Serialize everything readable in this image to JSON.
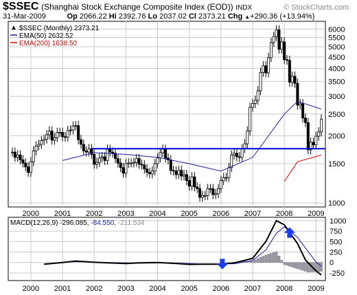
{
  "header": {
    "symbol": "$SSEC",
    "full_name": "(Shanghai Stock Exchange Composite Index (EOD))",
    "suffix": "INDX",
    "watermark": "© StockCharts.com",
    "date": "31-Mar-2009",
    "open_label": "Op",
    "open": "2066.22",
    "high_label": "Hi",
    "high": "2392.76",
    "low_label": "Lo",
    "low": "2037.02",
    "close_label": "Cl",
    "close": "2373.21",
    "change_label": "Chg",
    "change": "+290.36 (+13.94%)",
    "change_arrow": "▲"
  },
  "legend": {
    "price": "$SSEC (Monthly) 2373.21",
    "ema50": "EMA(50) 2632.52",
    "ema200": "EMA(200) 1638.50"
  },
  "macd_legend": {
    "label": "MACD(12,26,9)",
    "macd": "-296.085,",
    "signal": "-84.550,",
    "hist": "-211.534"
  },
  "colors": {
    "price": "#000000",
    "ema50": "#1a1aa8",
    "ema200": "#dd0000",
    "support": "#0000dd",
    "hist": "#9a9aa8",
    "arrow": "#1a3cf0",
    "grid": "#c8c8c8"
  },
  "chart_data": [
    {
      "type": "line",
      "title": "$SSEC (Monthly)",
      "y_scale": "log",
      "y_ticks": [
        1000,
        1500,
        2000,
        2500,
        3000,
        3500,
        4000,
        4500,
        5000,
        5500,
        6000
      ],
      "x_ticks": [
        "2000",
        "2001",
        "2002",
        "2003",
        "2004",
        "2005",
        "2006",
        "2007",
        "2008",
        "2009"
      ],
      "x_range": [
        "1999-06",
        "2009-03"
      ],
      "grid": true,
      "legend_position": "top-left",
      "series": [
        {
          "name": "$SSEC",
          "x": [
            "1999-06",
            "1999-07",
            "1999-08",
            "1999-09",
            "1999-10",
            "1999-11",
            "1999-12",
            "2000-01",
            "2000-02",
            "2000-03",
            "2000-04",
            "2000-05",
            "2000-06",
            "2000-07",
            "2000-08",
            "2000-09",
            "2000-10",
            "2000-11",
            "2000-12",
            "2001-01",
            "2001-02",
            "2001-03",
            "2001-04",
            "2001-05",
            "2001-06",
            "2001-07",
            "2001-08",
            "2001-09",
            "2001-10",
            "2001-11",
            "2001-12",
            "2002-01",
            "2002-02",
            "2002-03",
            "2002-04",
            "2002-05",
            "2002-06",
            "2002-07",
            "2002-08",
            "2002-09",
            "2002-10",
            "2002-11",
            "2002-12",
            "2003-01",
            "2003-02",
            "2003-03",
            "2003-04",
            "2003-05",
            "2003-06",
            "2003-07",
            "2003-08",
            "2003-09",
            "2003-10",
            "2003-11",
            "2003-12",
            "2004-01",
            "2004-02",
            "2004-03",
            "2004-04",
            "2004-05",
            "2004-06",
            "2004-07",
            "2004-08",
            "2004-09",
            "2004-10",
            "2004-11",
            "2004-12",
            "2005-01",
            "2005-02",
            "2005-03",
            "2005-04",
            "2005-05",
            "2005-06",
            "2005-07",
            "2005-08",
            "2005-09",
            "2005-10",
            "2005-11",
            "2005-12",
            "2006-01",
            "2006-02",
            "2006-03",
            "2006-04",
            "2006-05",
            "2006-06",
            "2006-07",
            "2006-08",
            "2006-09",
            "2006-10",
            "2006-11",
            "2006-12",
            "2007-01",
            "2007-02",
            "2007-03",
            "2007-04",
            "2007-05",
            "2007-06",
            "2007-07",
            "2007-08",
            "2007-09",
            "2007-10",
            "2007-11",
            "2007-12",
            "2008-01",
            "2008-02",
            "2008-03",
            "2008-04",
            "2008-05",
            "2008-06",
            "2008-07",
            "2008-08",
            "2008-09",
            "2008-10",
            "2008-11",
            "2008-12",
            "2009-01",
            "2009-02",
            "2009-03"
          ],
          "values": [
            1690,
            1600,
            1640,
            1560,
            1510,
            1450,
            1370,
            1530,
            1710,
            1800,
            1830,
            1900,
            1930,
            2020,
            2100,
            1910,
            1960,
            2070,
            2070,
            1980,
            1970,
            2110,
            2120,
            2210,
            2220,
            1920,
            1830,
            1710,
            1690,
            1750,
            1650,
            1490,
            1520,
            1590,
            1610,
            1550,
            1740,
            1690,
            1670,
            1580,
            1510,
            1440,
            1360,
            1500,
            1510,
            1510,
            1520,
            1580,
            1490,
            1480,
            1420,
            1370,
            1350,
            1390,
            1500,
            1590,
            1680,
            1740,
            1590,
            1560,
            1400,
            1390,
            1340,
            1400,
            1320,
            1340,
            1260,
            1190,
            1310,
            1180,
            1160,
            1060,
            1080,
            1080,
            1160,
            1160,
            1090,
            1100,
            1160,
            1260,
            1300,
            1300,
            1440,
            1640,
            1670,
            1610,
            1600,
            1750,
            1840,
            2100,
            2680,
            2790,
            2880,
            3180,
            3840,
            4110,
            3820,
            4470,
            5220,
            5560,
            5950,
            4870,
            5260,
            4380,
            4350,
            3470,
            3690,
            3430,
            2740,
            2780,
            2400,
            2290,
            1730,
            1870,
            1820,
            1990,
            2080,
            2373.21
          ]
        },
        {
          "name": "EMA(50)",
          "x": [
            "2001-01",
            "2002-01",
            "2003-01",
            "2004-01",
            "2005-01",
            "2006-01",
            "2007-01",
            "2008-01",
            "2008-06",
            "2009-03"
          ],
          "values": [
            1550,
            1680,
            1650,
            1600,
            1500,
            1390,
            1600,
            2500,
            2850,
            2632.52
          ]
        },
        {
          "name": "EMA(200)",
          "x": [
            "2008-01",
            "2008-06",
            "2009-03"
          ],
          "values": [
            1250,
            1530,
            1638.5
          ]
        }
      ],
      "annotations": [
        {
          "type": "horizontal_line",
          "value": 1750,
          "from": "2001-12",
          "to": "2009-03"
        }
      ]
    },
    {
      "type": "line",
      "title": "MACD(12,26,9)",
      "y_ticks": [
        -250,
        0,
        250,
        500,
        750,
        1000
      ],
      "x_ticks": [
        "2000",
        "2001",
        "2002",
        "2003",
        "2004",
        "2005",
        "2006",
        "2007",
        "2008",
        "2009"
      ],
      "x_range": [
        "1999-06",
        "2009-03"
      ],
      "grid": true,
      "series": [
        {
          "name": "MACD",
          "x": [
            "2000-06",
            "2001-01",
            "2001-06",
            "2002-01",
            "2002-06",
            "2003-01",
            "2003-06",
            "2004-01",
            "2004-06",
            "2005-01",
            "2005-06",
            "2006-01",
            "2006-06",
            "2007-01",
            "2007-06",
            "2007-10",
            "2008-01",
            "2008-06",
            "2008-09",
            "2009-01",
            "2009-03"
          ],
          "values": [
            -40,
            0,
            35,
            5,
            -10,
            -25,
            -10,
            0,
            -15,
            -45,
            -40,
            -40,
            -10,
            100,
            500,
            1000,
            900,
            450,
            60,
            -200,
            -296.085
          ]
        },
        {
          "name": "Signal",
          "x": [
            "2000-06",
            "2001-06",
            "2002-06",
            "2003-06",
            "2004-06",
            "2005-06",
            "2006-06",
            "2007-01",
            "2007-06",
            "2007-10",
            "2008-01",
            "2008-06",
            "2009-01",
            "2009-03"
          ],
          "values": [
            -30,
            20,
            0,
            -15,
            -10,
            -35,
            -30,
            50,
            300,
            700,
            850,
            600,
            10,
            -84.55
          ]
        },
        {
          "name": "Histogram",
          "x": [
            "2006-06",
            "2007-01",
            "2007-06",
            "2007-10",
            "2008-01",
            "2008-06",
            "2008-10",
            "2009-01",
            "2009-03"
          ],
          "values": [
            10,
            40,
            180,
            260,
            -50,
            -150,
            -230,
            -220,
            -211.534
          ]
        }
      ]
    }
  ]
}
